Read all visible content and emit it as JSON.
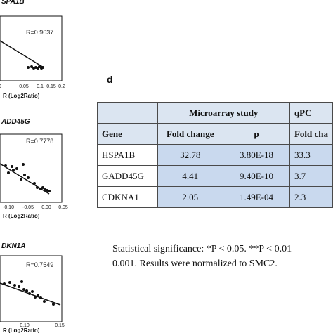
{
  "plots": [
    {
      "title": "SPA1B",
      "r": "R=0.9637",
      "xticks": [
        "0",
        "0.05",
        "0.1",
        "0.15",
        "0.2"
      ],
      "xlabel": "R (Log2Ratio)"
    },
    {
      "title": "ADD45G",
      "r": "R=0.7778",
      "xticks": [
        "-0.10",
        "-0.05",
        "0.00",
        "0.05"
      ],
      "xlabel": "R (Log2Ratio)"
    },
    {
      "title": "DKN1A",
      "r": "R=0.7549",
      "xticks": [
        "0.10",
        "0.15"
      ],
      "xlabel": "R (Log2Ratio)"
    }
  ],
  "panel_label": "d",
  "table": {
    "group_headers": [
      "Microarray study",
      "qPC"
    ],
    "col_headers": [
      "Gene",
      "Fold change",
      "p",
      "Fold cha"
    ],
    "rows": [
      {
        "gene": "HSPA1B",
        "fold": "32.78",
        "p": "3.80E-18",
        "qpcr": "33.3"
      },
      {
        "gene": "GADD45G",
        "fold": "4.41",
        "p": "9.40E-10",
        "qpcr": "3.7"
      },
      {
        "gene": "CDKNA1",
        "fold": "2.05",
        "p": "1.49E-04",
        "qpcr": "2.3"
      }
    ]
  },
  "note": {
    "line1": "Statistical significance: *P < 0.05. **P < 0.01",
    "line2": "0.001. Results were normalized to SMC2."
  }
}
